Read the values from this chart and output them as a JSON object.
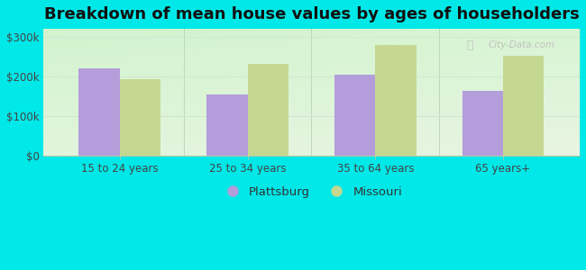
{
  "title": "Breakdown of mean house values by ages of householders",
  "categories": [
    "15 to 24 years",
    "25 to 34 years",
    "35 to 64 years",
    "65 years+"
  ],
  "plattsburg_values": [
    220000,
    155000,
    205000,
    163000
  ],
  "missouri_values": [
    193000,
    232000,
    280000,
    252000
  ],
  "plattsburg_color": "#b39ddb",
  "missouri_color": "#c5d891",
  "ylim": [
    0,
    320000
  ],
  "yticks": [
    0,
    100000,
    200000,
    300000
  ],
  "ytick_labels": [
    "$0",
    "$100k",
    "$200k",
    "$300k"
  ],
  "fig_bg_color": "#00e8e8",
  "plot_bg_color": "#e8f5e2",
  "legend_plattsburg": "Plattsburg",
  "legend_missouri": "Missouri",
  "bar_width": 0.32,
  "title_fontsize": 13,
  "tick_fontsize": 8.5,
  "legend_fontsize": 9.5,
  "watermark": "City-Data.com",
  "separator_color": "#b0cbb0",
  "grid_color": "#d0e8d0"
}
